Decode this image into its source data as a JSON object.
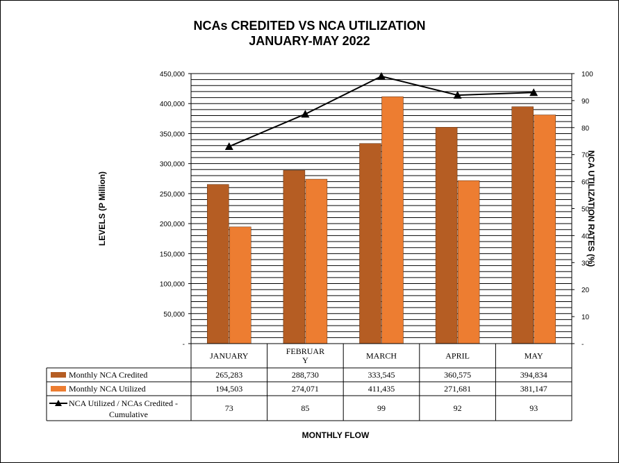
{
  "chart_data": {
    "type": "bar",
    "title": "NCAs CREDITED VS NCA UTILIZATION",
    "subtitle": "JANUARY-MAY 2022",
    "xlabel": "MONTHLY  FLOW",
    "ylabel": "LEVELS (P Million)",
    "y2label": "NCA UTILIZATION RATES (%)",
    "categories": [
      "JANUARY",
      "FEBRUARY",
      "MARCH",
      "APRIL",
      "MAY"
    ],
    "category_display": [
      [
        "JANUARY"
      ],
      [
        "FEBRUAR",
        "Y"
      ],
      [
        "MARCH"
      ],
      [
        "APRIL"
      ],
      [
        "MAY"
      ]
    ],
    "ylim": [
      0,
      450000
    ],
    "y2lim": [
      0,
      100
    ],
    "y_ticks": [
      "-",
      "50,000",
      "100,000",
      "150,000",
      "200,000",
      "250,000",
      "300,000",
      "350,000",
      "400,000",
      "450,000"
    ],
    "y2_ticks": [
      "-",
      "10",
      "20",
      "30",
      "40",
      "50",
      "60",
      "70",
      "80",
      "90",
      "100"
    ],
    "grid": true,
    "series": [
      {
        "name": "Monthly NCA Credited",
        "type": "bar",
        "color": "#B55D23",
        "values": [
          265283,
          288730,
          333545,
          360575,
          394834
        ],
        "labels": [
          "265,283",
          "288,730",
          "333,545",
          "360,575",
          "394,834"
        ]
      },
      {
        "name": "Monthly NCA Utilized",
        "type": "bar",
        "color": "#ED7D31",
        "values": [
          194503,
          274071,
          411435,
          271681,
          381147
        ],
        "labels": [
          "194,503",
          "274,071",
          "411,435",
          "271,681",
          "381,147"
        ]
      },
      {
        "name": "NCA Utilized / NCAs Credited - Cumulative",
        "name_lines": [
          "NCA Utilized / NCAs Credited -",
          "Cumulative"
        ],
        "type": "line",
        "axis": "secondary",
        "color": "#000000",
        "marker": "triangle",
        "values": [
          73,
          85,
          99,
          92,
          93
        ],
        "labels": [
          "73",
          "85",
          "99",
          "92",
          "93"
        ]
      }
    ],
    "data_table": true
  }
}
